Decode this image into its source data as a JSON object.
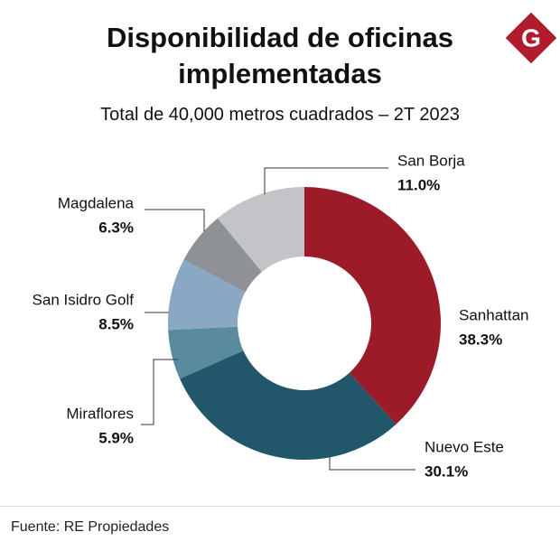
{
  "chart_data": {
    "type": "donut",
    "title": "Disponibilidad de oficinas implementadas",
    "subtitle": "Total de 40,000 metros cuadrados – 2T 2023",
    "logo": "G",
    "categories": [
      "Sanhattan",
      "Nuevo Este",
      "Miraflores",
      "San Isidro Golf",
      "Magdalena",
      "San Borja"
    ],
    "values": [
      38.3,
      30.1,
      5.9,
      8.5,
      6.3,
      11.0
    ],
    "value_labels": [
      "38.3%",
      "30.1%",
      "5.9%",
      "8.5%",
      "6.3%",
      "11.0%"
    ],
    "colors": [
      "#9b1c28",
      "#22566b",
      "#5a8a9e",
      "#8aa8c4",
      "#8e9196",
      "#c2c4c8"
    ],
    "source": "Fuente: RE Propiedades"
  }
}
